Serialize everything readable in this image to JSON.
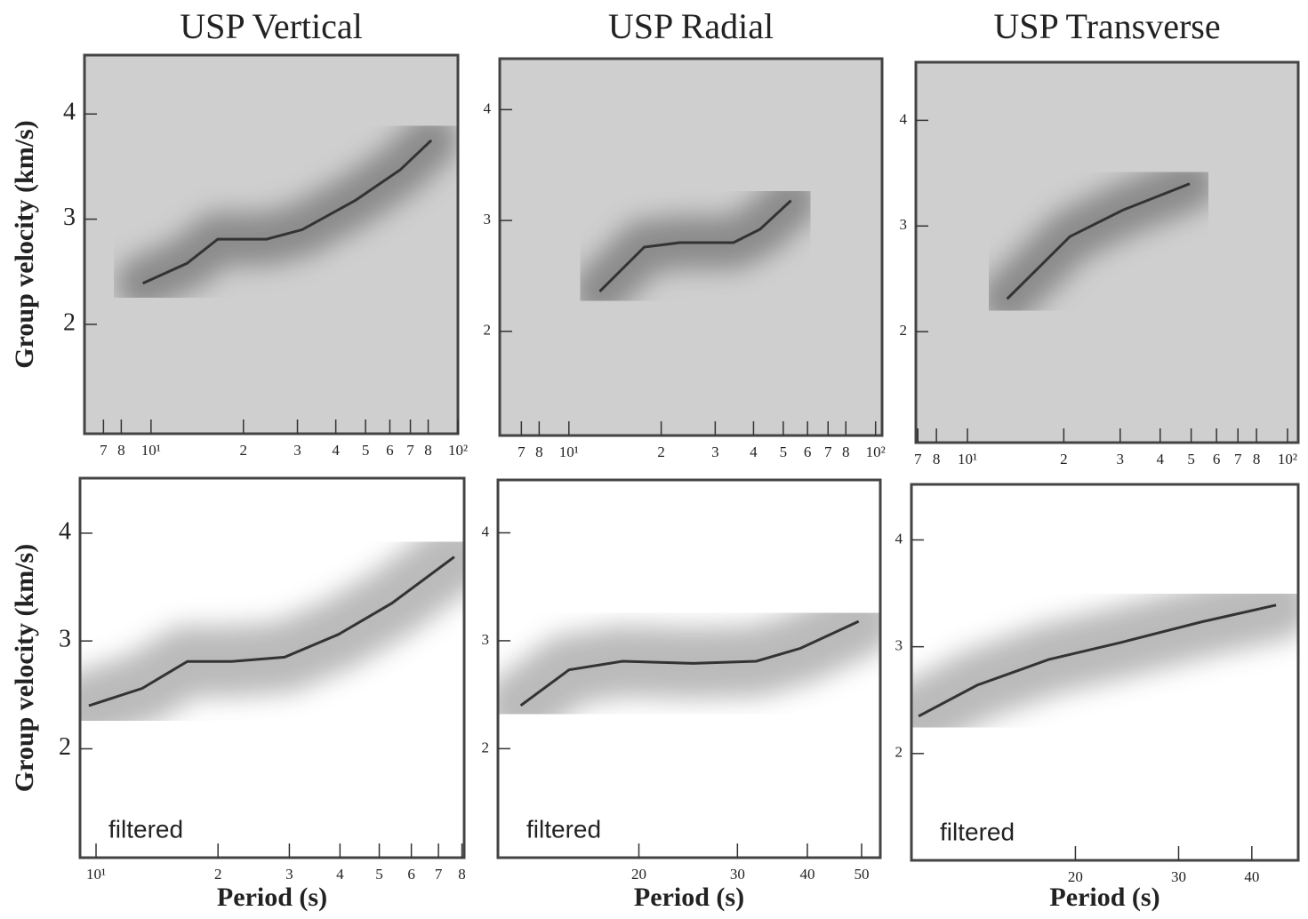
{
  "chart_data": [
    {
      "type": "line",
      "title": "USP Vertical",
      "ylabel": "Group velocity (km/s)",
      "xlog": true,
      "x": [
        9.4,
        13.1,
        16.5,
        23.8,
        31.1,
        46.4,
        64.9,
        81.9
      ],
      "series": [
        {
          "color": "#333333",
          "values": [
            2.39,
            2.58,
            2.81,
            2.81,
            2.9,
            3.18,
            3.47,
            3.75
          ]
        }
      ],
      "xlim": [
        6.07,
        100
      ],
      "ylim": [
        0.96,
        4.56
      ],
      "xticks": [
        7,
        8,
        {
          "value": 10,
          "label": "10¹"
        },
        {
          "value": 20,
          "label": "2"
        },
        {
          "value": 30,
          "label": "3"
        },
        {
          "value": 40,
          "label": "4"
        },
        {
          "value": 50,
          "label": "5"
        },
        {
          "value": 60,
          "label": "6"
        },
        {
          "value": 70,
          "label": "7"
        },
        {
          "value": 80,
          "label": "8"
        },
        {
          "value": 100,
          "label": "10²"
        }
      ],
      "yticks": [
        2,
        3,
        4
      ]
    },
    {
      "type": "line",
      "title": "USP Radial",
      "xlog": true,
      "x": [
        12.6,
        17.6,
        23,
        34.4,
        42,
        53
      ],
      "series": [
        {
          "color": "#333333",
          "values": [
            2.36,
            2.76,
            2.8,
            2.8,
            2.92,
            3.18
          ]
        }
      ],
      "xlim": [
        5.95,
        105
      ],
      "ylim": [
        1.06,
        4.46
      ],
      "xticks": [
        7,
        8,
        {
          "value": 10,
          "label": "10¹"
        },
        {
          "value": 20,
          "label": "2"
        },
        {
          "value": 30,
          "label": "3"
        },
        {
          "value": 40,
          "label": "4"
        },
        {
          "value": 50,
          "label": "5"
        },
        {
          "value": 60,
          "label": "6"
        },
        {
          "value": 70,
          "label": "7"
        },
        {
          "value": 80,
          "label": "8"
        },
        {
          "value": 100,
          "label": "10²"
        }
      ],
      "yticks": [
        2,
        3,
        4
      ]
    },
    {
      "type": "line",
      "title": "USP Transverse",
      "xlog": true,
      "x": [
        13.3,
        20.9,
        30.6,
        49.5
      ],
      "series": [
        {
          "color": "#333333",
          "values": [
            2.31,
            2.9,
            3.15,
            3.4
          ]
        }
      ],
      "xlim": [
        6.9,
        108
      ],
      "ylim": [
        0.95,
        4.55
      ],
      "xticks": [
        7,
        8,
        {
          "value": 10,
          "label": "10¹"
        },
        {
          "value": 20,
          "label": "2"
        },
        {
          "value": 30,
          "label": "3"
        },
        {
          "value": 40,
          "label": "4"
        },
        {
          "value": 50,
          "label": "5"
        },
        {
          "value": 60,
          "label": "6"
        },
        {
          "value": 70,
          "label": "7"
        },
        {
          "value": 80,
          "label": "8"
        },
        {
          "value": 100,
          "label": "10²"
        }
      ],
      "yticks": [
        2,
        3,
        4
      ]
    },
    {
      "type": "line",
      "ylabel": "Group velocity (km/s)",
      "xlabel": "Period (s)",
      "annotation": "filtered",
      "xlog": true,
      "x": [
        9.6,
        13,
        16.8,
        21.6,
        29.2,
        39.6,
        53.7,
        76.6
      ],
      "series": [
        {
          "color": "#333333",
          "values": [
            2.4,
            2.56,
            2.81,
            2.81,
            2.85,
            3.06,
            3.35,
            3.78
          ]
        }
      ],
      "xlim": [
        9.13,
        81
      ],
      "ylim": [
        0.99,
        4.51
      ],
      "xticks": [
        {
          "value": 10,
          "label": "10¹"
        },
        {
          "value": 20,
          "label": "2"
        },
        {
          "value": 30,
          "label": "3"
        },
        {
          "value": 40,
          "label": "4"
        },
        {
          "value": 50,
          "label": "5"
        },
        {
          "value": 60,
          "label": "6"
        },
        {
          "value": 70,
          "label": "7"
        },
        {
          "value": 80,
          "label": "8"
        }
      ],
      "yticks": [
        2,
        3,
        4
      ]
    },
    {
      "type": "line",
      "xlabel": "Period (s)",
      "annotation": "filtered",
      "xlog": true,
      "x": [
        12.3,
        15,
        18.7,
        25,
        32.4,
        38.9,
        49.4
      ],
      "series": [
        {
          "color": "#333333",
          "values": [
            2.4,
            2.73,
            2.81,
            2.79,
            2.81,
            2.93,
            3.18
          ]
        }
      ],
      "xlim": [
        11.2,
        54
      ],
      "ylim": [
        0.99,
        4.49
      ],
      "xticks": [
        20,
        30,
        40,
        50
      ],
      "yticks": [
        2,
        3,
        4
      ]
    },
    {
      "type": "line",
      "xlabel": "Period (s)",
      "annotation": "filtered",
      "xlog": true,
      "x": [
        10.8,
        13.6,
        18,
        23.9,
        32.7,
        44
      ],
      "series": [
        {
          "color": "#333333",
          "values": [
            2.35,
            2.64,
            2.88,
            3.04,
            3.23,
            3.39
          ]
        }
      ],
      "xlim": [
        10.5,
        48
      ],
      "ylim": [
        1.0,
        4.52
      ],
      "xticks": [
        20,
        30,
        40
      ],
      "yticks": [
        2,
        3,
        4
      ]
    }
  ]
}
